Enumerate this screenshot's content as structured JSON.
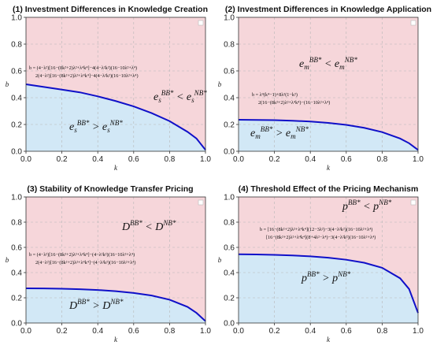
{
  "colors": {
    "upper": "#f6d6da",
    "lower": "#d2e8f6",
    "curve": "#1010c8"
  },
  "chart_data": [
    {
      "type": "area",
      "title": "(1) Investment Differences in Knowledge Creation",
      "xlabel": "k",
      "ylabel": "b",
      "xlim": [
        0,
        1
      ],
      "ylim": [
        0,
        1
      ],
      "grid": true,
      "xticks": [
        "0.0",
        "0.2",
        "0.4",
        "0.6",
        "0.8",
        "1.0"
      ],
      "yticks": [
        "0.0",
        "0.2",
        "0.4",
        "0.6",
        "0.8",
        "1.0"
      ],
      "series": [
        {
          "x": [
            0,
            0.1,
            0.2,
            0.3,
            0.4,
            0.5,
            0.6,
            0.7,
            0.8,
            0.9,
            0.95,
            1.0
          ],
          "values": [
            0.5,
            0.48,
            0.46,
            0.44,
            0.41,
            0.375,
            0.335,
            0.285,
            0.225,
            0.145,
            0.095,
            0.01
          ]
        }
      ],
      "region_upper": "e_s^{BB*} < e_s^{NB*}",
      "region_lower": "e_s^{BB*} > e_s^{NB*}",
      "formula": "b = (4−λ²)[16−(8k²+2)λ²+λ⁴k⁴]−4(4−λ²k²)(16−10λ²+λ⁴) / 2(4−λ²)[16−(8k²+2)λ²+λ⁴k⁴]−4(4−λ²k²)(16−10λ²+λ⁴)"
    },
    {
      "type": "area",
      "title": "(2) Investment Differences in Knowledge Application",
      "xlabel": "k",
      "ylabel": "b",
      "xlim": [
        0,
        1
      ],
      "ylim": [
        0,
        1
      ],
      "grid": true,
      "xticks": [
        "0.0",
        "0.2",
        "0.4",
        "0.6",
        "0.8",
        "1.0"
      ],
      "yticks": [
        "0.0",
        "0.2",
        "0.4",
        "0.6",
        "0.8",
        "1.0"
      ],
      "series": [
        {
          "x": [
            0,
            0.1,
            0.2,
            0.3,
            0.4,
            0.5,
            0.6,
            0.7,
            0.8,
            0.9,
            0.95,
            1.0
          ],
          "values": [
            0.235,
            0.234,
            0.232,
            0.228,
            0.222,
            0.212,
            0.197,
            0.175,
            0.143,
            0.095,
            0.06,
            0.01
          ]
        }
      ],
      "region_upper": "e_m^{BB*} < e_m^{NB*}",
      "region_lower": "e_m^{BB*} > e_m^{NB*}",
      "formula": "b = λ⁴(k⁴−1)+8λ²(1−k²) / 2(16−(8k²+2)λ²+λ⁴k⁴)−(16−10λ²+λ⁴)"
    },
    {
      "type": "area",
      "title": "(3) Stability of Knowledge Transfer Pricing",
      "xlabel": "k",
      "ylabel": "b",
      "xlim": [
        0,
        1
      ],
      "ylim": [
        0,
        1
      ],
      "grid": true,
      "xticks": [
        "0.0",
        "0.2",
        "0.4",
        "0.6",
        "0.8",
        "1.0"
      ],
      "yticks": [
        "0.0",
        "0.2",
        "0.4",
        "0.6",
        "0.8",
        "1.0"
      ],
      "series": [
        {
          "x": [
            0,
            0.1,
            0.2,
            0.3,
            0.4,
            0.5,
            0.6,
            0.7,
            0.8,
            0.9,
            0.95,
            1.0
          ],
          "values": [
            0.275,
            0.274,
            0.272,
            0.268,
            0.262,
            0.252,
            0.238,
            0.218,
            0.185,
            0.128,
            0.08,
            0.015
          ]
        }
      ],
      "region_upper": "D^{BB*} < D^{NB*}",
      "region_lower": "D^{BB*} > D^{NB*}",
      "formula": "b = (4−λ²)[16−(8k²+2)λ²+λ⁴k⁴]−(4−λ²k²)(16−10λ²+λ⁴) / 2(4−λ²)[16−(8k²+2)λ²+λ⁴k⁴]−(4−λ²k²)(16−10λ²+λ⁴)"
    },
    {
      "type": "area",
      "title": "(4) Threshold Effect of the Pricing Mechanism",
      "xlabel": "k",
      "ylabel": "b",
      "xlim": [
        0,
        1
      ],
      "ylim": [
        0,
        1
      ],
      "grid": true,
      "xticks": [
        "0.0",
        "0.2",
        "0.4",
        "0.6",
        "0.8",
        "1.0"
      ],
      "yticks": [
        "0.0",
        "0.2",
        "0.4",
        "0.6",
        "0.8",
        "1.0"
      ],
      "series": [
        {
          "x": [
            0,
            0.1,
            0.2,
            0.3,
            0.4,
            0.5,
            0.6,
            0.7,
            0.8,
            0.9,
            0.95,
            1.0
          ],
          "values": [
            0.545,
            0.544,
            0.541,
            0.536,
            0.529,
            0.518,
            0.502,
            0.478,
            0.438,
            0.355,
            0.27,
            0.08
          ]
        }
      ],
      "region_upper": "p^{BB*} < p^{NB*}",
      "region_lower": "p^{BB*} > p^{NB*}",
      "formula": "b = [16−(8k²+2)λ²+λ⁴k⁴](12−3λ²)−3(4−λ²k²)(16−10λ²+λ⁴) / [16−(8k²+2)λ²+λ⁴k⁴](8+4λ²−λ⁴)−3(4−λ²k²)(16−10λ²+λ⁴)"
    }
  ]
}
